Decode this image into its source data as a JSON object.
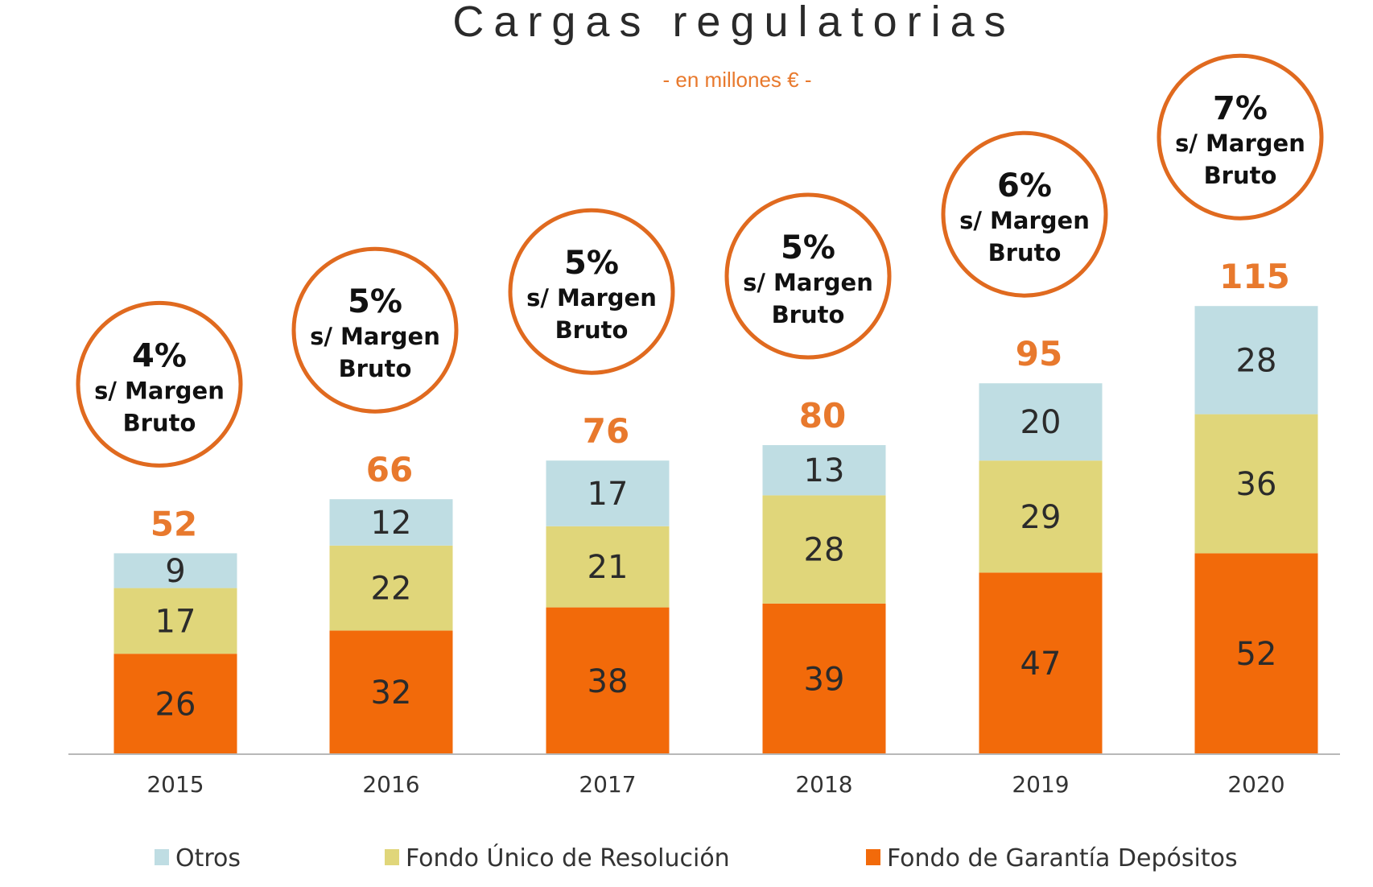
{
  "chart_data": {
    "type": "bar",
    "stacked": true,
    "title": "Cargas regulatorias",
    "subtitle": "- en millones € -",
    "categories": [
      "2015",
      "2016",
      "2017",
      "2018",
      "2019",
      "2020"
    ],
    "series": [
      {
        "name": "Fondo de Garantía Depósitos",
        "color": "#f26a0a",
        "values": [
          26,
          32,
          38,
          39,
          47,
          52
        ]
      },
      {
        "name": "Fondo Único de Resolución",
        "color": "#e0d67a",
        "values": [
          17,
          22,
          21,
          28,
          29,
          36
        ]
      },
      {
        "name": "Otros",
        "color": "#bfdde3",
        "values": [
          9,
          12,
          17,
          13,
          20,
          28
        ]
      }
    ],
    "totals": [
      "52",
      "66",
      "76",
      "80",
      "95",
      "115"
    ],
    "annotations": [
      {
        "pct": "4%",
        "line1": "s/ Margen",
        "line2": "Bruto"
      },
      {
        "pct": "5%",
        "line1": "s/ Margen",
        "line2": "Bruto"
      },
      {
        "pct": "5%",
        "line1": "s/ Margen",
        "line2": "Bruto"
      },
      {
        "pct": "5%",
        "line1": "s/ Margen",
        "line2": "Bruto"
      },
      {
        "pct": "6%",
        "line1": "s/ Margen",
        "line2": "Bruto"
      },
      {
        "pct": "7%",
        "line1": "s/ Margen",
        "line2": "Bruto"
      }
    ],
    "legend": {
      "placement": "bottom",
      "order": [
        "Otros",
        "Fondo Único de Resolución",
        "Fondo de Garantía Depósitos"
      ]
    },
    "ylim": [
      0,
      120
    ],
    "grid": false,
    "accent_color": "#e8792d",
    "circle_color": "#e06a1f"
  }
}
